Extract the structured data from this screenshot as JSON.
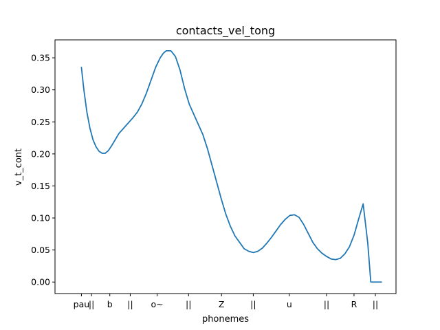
{
  "chart_data": {
    "type": "line",
    "title": "contacts_vel_tong",
    "xlabel": "phonemes",
    "ylabel": "v_t_cont",
    "grid": false,
    "legend": "none",
    "xlim": [
      0,
      100
    ],
    "ylim": [
      -0.018,
      0.378
    ],
    "x_ticks": [
      {
        "x": 3.7,
        "label": "pau"
      },
      {
        "x": 7.0,
        "label": "||"
      },
      {
        "x": 13.0,
        "label": "b"
      },
      {
        "x": 19.7,
        "label": "||"
      },
      {
        "x": 28.5,
        "label": "o~"
      },
      {
        "x": 38.8,
        "label": "||"
      },
      {
        "x": 49.6,
        "label": "Z"
      },
      {
        "x": 60.0,
        "label": "||"
      },
      {
        "x": 71.8,
        "label": "u"
      },
      {
        "x": 84.0,
        "label": "||"
      },
      {
        "x": 93.0,
        "label": "R"
      },
      {
        "x": 100.0,
        "label": "||"
      }
    ],
    "y_ticks": [
      0.0,
      0.05,
      0.1,
      0.15,
      0.2,
      0.25,
      0.3,
      0.35
    ],
    "y_tick_labels": [
      "0.00",
      "0.05",
      "0.10",
      "0.15",
      "0.20",
      "0.25",
      "0.30",
      "0.35"
    ],
    "series": [
      {
        "color": "#1f77b4",
        "x": [
          3.7,
          4.5,
          5.5,
          6.5,
          7.5,
          8.5,
          9.5,
          10.5,
          11.5,
          12.5,
          13.5,
          14.5,
          16.0,
          17.5,
          19.0,
          20.5,
          22.0,
          23.5,
          25.0,
          26.5,
          28.0,
          29.5,
          30.5,
          31.5,
          33.0,
          34.5,
          36.0,
          37.5,
          39.0,
          40.5,
          42.0,
          43.5,
          45.0,
          46.5,
          48.0,
          49.5,
          51.0,
          52.5,
          54.0,
          55.5,
          57.0,
          58.5,
          60.0,
          61.5,
          63.0,
          64.5,
          66.0,
          67.5,
          69.0,
          70.5,
          72.0,
          73.5,
          75.0,
          76.5,
          78.0,
          79.5,
          81.0,
          82.5,
          84.0,
          85.5,
          87.0,
          88.5,
          90.0,
          91.5,
          93.0,
          94.5,
          96.0,
          97.5,
          98.5,
          99.3,
          99.6,
          100.0,
          101.5,
          102.0
        ],
        "values": [
          0.335,
          0.3,
          0.265,
          0.24,
          0.222,
          0.211,
          0.204,
          0.201,
          0.201,
          0.205,
          0.212,
          0.22,
          0.232,
          0.24,
          0.248,
          0.256,
          0.265,
          0.278,
          0.295,
          0.315,
          0.335,
          0.35,
          0.357,
          0.361,
          0.361,
          0.352,
          0.331,
          0.302,
          0.278,
          0.262,
          0.246,
          0.23,
          0.208,
          0.182,
          0.156,
          0.13,
          0.106,
          0.087,
          0.072,
          0.062,
          0.052,
          0.048,
          0.046,
          0.048,
          0.053,
          0.061,
          0.07,
          0.08,
          0.09,
          0.098,
          0.104,
          0.105,
          0.101,
          0.09,
          0.076,
          0.062,
          0.052,
          0.045,
          0.04,
          0.036,
          0.035,
          0.037,
          0.044,
          0.055,
          0.073,
          0.098,
          0.122,
          0.061,
          0.0,
          0.0,
          0.0,
          0.0,
          0.0,
          0.0
        ]
      }
    ]
  }
}
